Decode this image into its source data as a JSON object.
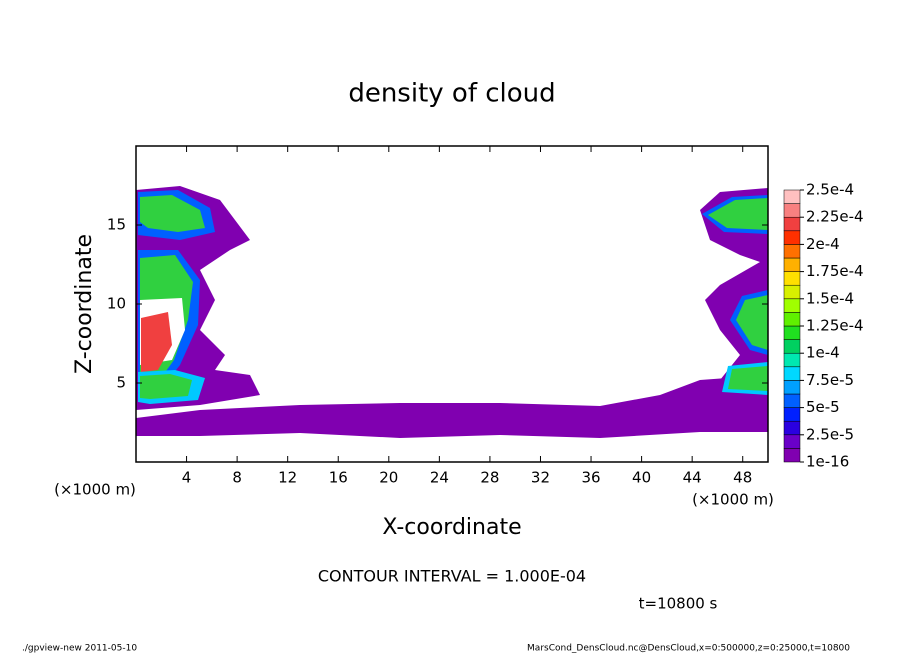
{
  "chart_data": {
    "type": "contour",
    "title": "density of cloud",
    "x_label": "X-coordinate",
    "y_label": "Z-coordinate",
    "x_unit": "(×1000 m)",
    "y_unit": "(×1000 m)",
    "xlim": [
      0,
      50
    ],
    "xticks": [
      4,
      8,
      12,
      16,
      20,
      24,
      28,
      32,
      36,
      40,
      44,
      48
    ],
    "ylim": [
      0,
      20
    ],
    "yticks": [
      5,
      10,
      15
    ],
    "colorbar_ticks": [
      {
        "value": 1e-16,
        "label": "1e-16"
      },
      {
        "value": 2.5e-05,
        "label": "2.5e-5"
      },
      {
        "value": 5e-05,
        "label": "5e-5"
      },
      {
        "value": 7.5e-05,
        "label": "7.5e-5"
      },
      {
        "value": 0.0001,
        "label": "1e-4"
      },
      {
        "value": 0.000125,
        "label": "1.25e-4"
      },
      {
        "value": 0.00015,
        "label": "1.5e-4"
      },
      {
        "value": 0.000175,
        "label": "1.75e-4"
      },
      {
        "value": 0.0002,
        "label": "2e-4"
      },
      {
        "value": 0.000225,
        "label": "2.25e-4"
      },
      {
        "value": 0.00025,
        "label": "2.5e-4"
      }
    ],
    "colorbar_colors": [
      "#8000b0",
      "#6a00c8",
      "#2a00e0",
      "#0020ff",
      "#0060ff",
      "#00a0ff",
      "#00d8ff",
      "#00e8b0",
      "#00d060",
      "#20e020",
      "#60f000",
      "#a0ff00",
      "#d8f000",
      "#ffe000",
      "#ffb000",
      "#ff7000",
      "#ff3000",
      "#f04040",
      "#f88080",
      "#ffc0c0"
    ],
    "annotations": [
      "CONTOUR INTERVAL = 1.000E-04",
      "t=10800 s"
    ],
    "footer_left": "./gpview-new  2011-05-10",
    "footer_right": "MarsCond_DensCloud.nc@DensCloud,x=0:500000,z=0:25000,t=10800"
  }
}
